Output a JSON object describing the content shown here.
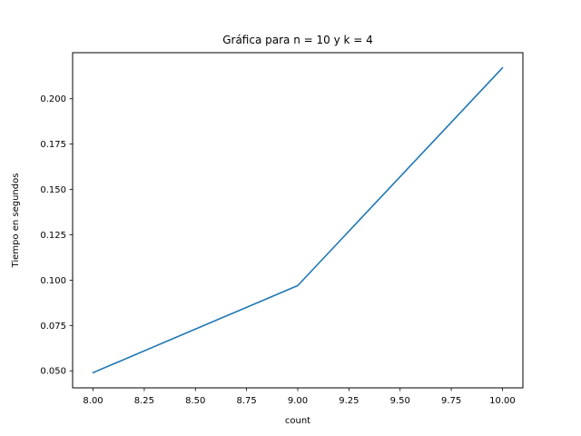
{
  "chart_data": {
    "type": "line",
    "title": "Gráfica para n = 10 y k = 4",
    "xlabel": "count",
    "ylabel": "Tiempo en segundos",
    "x": [
      8,
      9,
      10
    ],
    "series": [
      {
        "values": [
          0.049,
          0.097,
          0.217
        ],
        "color": "#1f77b4"
      }
    ],
    "xlim": [
      7.9,
      10.1
    ],
    "ylim": [
      0.0406,
      0.2254
    ],
    "x_ticks": [
      "8.00",
      "8.25",
      "8.50",
      "8.75",
      "9.00",
      "9.25",
      "9.50",
      "9.75",
      "10.00"
    ],
    "y_ticks": [
      "0.050",
      "0.075",
      "0.100",
      "0.125",
      "0.150",
      "0.175",
      "0.200"
    ],
    "grid": false,
    "legend": "none"
  }
}
